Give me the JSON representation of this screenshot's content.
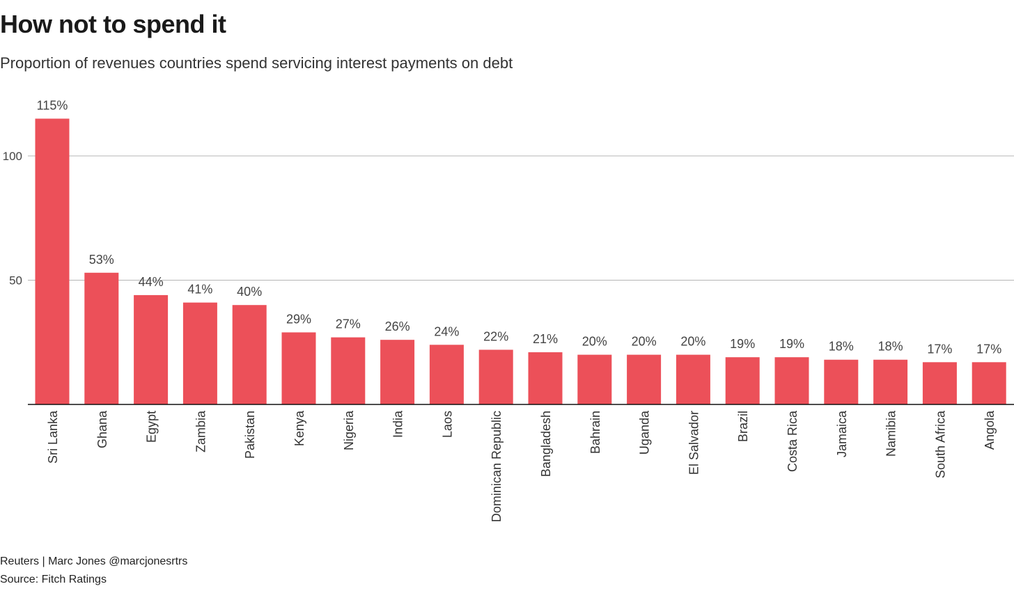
{
  "title": "How not to spend it",
  "subtitle": "Proportion of revenues countries spend servicing interest payments on debt",
  "footer": {
    "credit": "Reuters | Marc Jones @marcjonesrtrs",
    "source": "Source: Fitch Ratings"
  },
  "chart_data": {
    "type": "bar",
    "title": "How not to spend it",
    "subtitle": "Proportion of revenues countries spend servicing interest payments on debt",
    "categories": [
      "Sri Lanka",
      "Ghana",
      "Egypt",
      "Zambia",
      "Pakistan",
      "Kenya",
      "Nigeria",
      "India",
      "Laos",
      "Dominican Republic",
      "Bangladesh",
      "Bahrain",
      "Uganda",
      "El Salvador",
      "Brazil",
      "Costa Rica",
      "Jamaica",
      "Namibia",
      "South Africa",
      "Angola"
    ],
    "values": [
      115,
      53,
      44,
      41,
      40,
      29,
      27,
      26,
      24,
      22,
      21,
      20,
      20,
      20,
      19,
      19,
      18,
      18,
      17,
      17
    ],
    "data_labels": [
      "115%",
      "53%",
      "44%",
      "41%",
      "40%",
      "29%",
      "27%",
      "26%",
      "24%",
      "22%",
      "21%",
      "20%",
      "20%",
      "20%",
      "19%",
      "19%",
      "18%",
      "18%",
      "17%",
      "17%"
    ],
    "yticks": [
      50,
      100
    ],
    "ylim": [
      0,
      120
    ],
    "xlabel": "",
    "ylabel": "",
    "grid": true,
    "legend": "none",
    "bar_color": "#ec5059",
    "grid_color": "#b5b5b5",
    "axis_color": "#111111"
  }
}
